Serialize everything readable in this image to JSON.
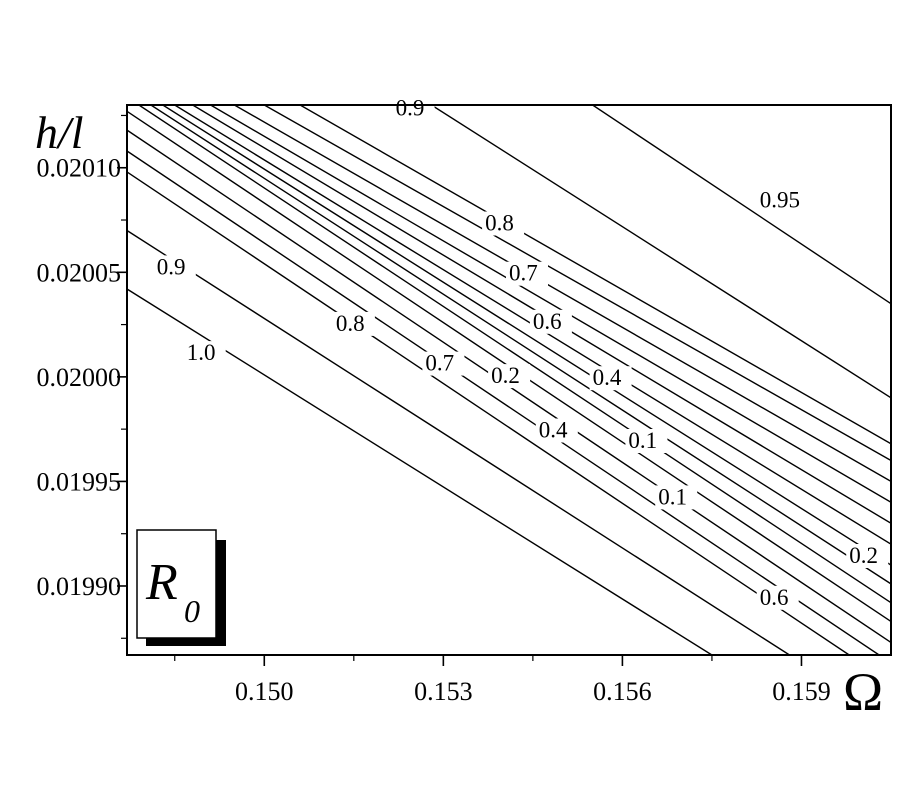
{
  "chart_data": {
    "type": "contour",
    "xlabel": "Ω",
    "ylabel": "h/l",
    "legend_label": {
      "main": "R",
      "subscript": "0"
    },
    "xlim": [
      0.1477,
      0.1605
    ],
    "ylim": [
      0.019867,
      0.02013
    ],
    "x_ticks": [
      {
        "value": 0.15,
        "label": "0.150"
      },
      {
        "value": 0.153,
        "label": "0.153"
      },
      {
        "value": 0.156,
        "label": "0.156"
      },
      {
        "value": 0.159,
        "label": "0.159"
      }
    ],
    "y_ticks": [
      {
        "value": 0.0201,
        "label": "0.02010"
      },
      {
        "value": 0.02005,
        "label": "0.02005"
      },
      {
        "value": 0.02,
        "label": "0.02000"
      },
      {
        "value": 0.01995,
        "label": "0.01995"
      },
      {
        "value": 0.0199,
        "label": "0.01990"
      }
    ],
    "contours": [
      {
        "points": [
          [
            0.1477,
            0.020042
          ],
          [
            0.1575,
            0.019867
          ]
        ]
      },
      {
        "points": [
          [
            0.1477,
            0.02007
          ],
          [
            0.1588,
            0.019867
          ]
        ]
      },
      {
        "points": [
          [
            0.1477,
            0.020098
          ],
          [
            0.1598,
            0.019867
          ]
        ]
      },
      {
        "points": [
          [
            0.1477,
            0.020108
          ],
          [
            0.1603,
            0.019867
          ]
        ]
      },
      {
        "points": [
          [
            0.1477,
            0.020118
          ],
          [
            0.1605,
            0.019873
          ]
        ]
      },
      {
        "points": [
          [
            0.1477,
            0.020127
          ],
          [
            0.1605,
            0.019883
          ]
        ]
      },
      {
        "points": [
          [
            0.1479,
            0.02013
          ],
          [
            0.1605,
            0.019892
          ]
        ]
      },
      {
        "points": [
          [
            0.1481,
            0.02013
          ],
          [
            0.1605,
            0.019901
          ]
        ]
      },
      {
        "points": [
          [
            0.1483,
            0.02013
          ],
          [
            0.1605,
            0.01991
          ]
        ]
      },
      {
        "points": [
          [
            0.1485,
            0.02013
          ],
          [
            0.1605,
            0.01992
          ]
        ]
      },
      {
        "points": [
          [
            0.1488,
            0.02013
          ],
          [
            0.1605,
            0.01993
          ]
        ]
      },
      {
        "points": [
          [
            0.1491,
            0.02013
          ],
          [
            0.1605,
            0.01994
          ]
        ]
      },
      {
        "points": [
          [
            0.1495,
            0.02013
          ],
          [
            0.1605,
            0.01995
          ]
        ]
      },
      {
        "points": [
          [
            0.15,
            0.02013
          ],
          [
            0.1605,
            0.01996
          ]
        ]
      },
      {
        "points": [
          [
            0.1506,
            0.02013
          ],
          [
            0.1605,
            0.019968
          ]
        ]
      },
      {
        "points": [
          [
            0.1528,
            0.02013
          ],
          [
            0.1605,
            0.01999
          ]
        ]
      },
      {
        "points": [
          [
            0.1555,
            0.02013
          ],
          [
            0.1605,
            0.020035
          ]
        ]
      }
    ],
    "labels": [
      {
        "text": "0.9",
        "x": 0.1522,
        "y": 0.020125
      },
      {
        "text": "0.95",
        "x": 0.1583,
        "y": 0.020081
      },
      {
        "text": "0.8",
        "x": 0.1537,
        "y": 0.02007
      },
      {
        "text": "0.7",
        "x": 0.1541,
        "y": 0.020046
      },
      {
        "text": "0.6",
        "x": 0.1545,
        "y": 0.020023
      },
      {
        "text": "0.4",
        "x": 0.1555,
        "y": 0.019996
      },
      {
        "text": "0.9",
        "x": 0.1482,
        "y": 0.020049
      },
      {
        "text": "0.8",
        "x": 0.1512,
        "y": 0.020022
      },
      {
        "text": "1.0",
        "x": 0.1487,
        "y": 0.020008
      },
      {
        "text": "0.7",
        "x": 0.1527,
        "y": 0.020003
      },
      {
        "text": "0.2",
        "x": 0.1538,
        "y": 0.019997
      },
      {
        "text": "0.4",
        "x": 0.1546,
        "y": 0.019971
      },
      {
        "text": "0.1",
        "x": 0.1561,
        "y": 0.019966
      },
      {
        "text": "0.1",
        "x": 0.1566,
        "y": 0.019939
      },
      {
        "text": "0.2",
        "x": 0.1598,
        "y": 0.019911
      },
      {
        "text": "0.6",
        "x": 0.1583,
        "y": 0.019891
      }
    ]
  }
}
